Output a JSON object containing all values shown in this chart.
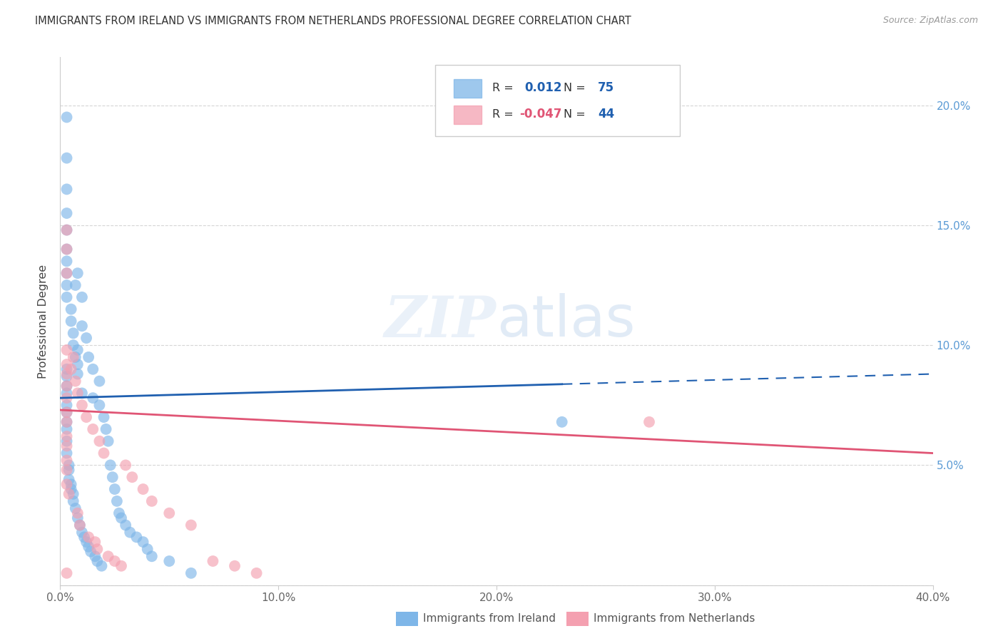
{
  "title": "IMMIGRANTS FROM IRELAND VS IMMIGRANTS FROM NETHERLANDS PROFESSIONAL DEGREE CORRELATION CHART",
  "source": "Source: ZipAtlas.com",
  "ylabel": "Professional Degree",
  "xlim": [
    0.0,
    0.4
  ],
  "ylim": [
    0.0,
    0.22
  ],
  "xticks": [
    0.0,
    0.1,
    0.2,
    0.3,
    0.4
  ],
  "yticks": [
    0.0,
    0.05,
    0.1,
    0.15,
    0.2
  ],
  "xtick_labels": [
    "0.0%",
    "10.0%",
    "20.0%",
    "30.0%",
    "40.0%"
  ],
  "ytick_labels": [
    "",
    "5.0%",
    "10.0%",
    "15.0%",
    "20.0%"
  ],
  "ireland_color": "#7EB6E8",
  "netherlands_color": "#F4A0B0",
  "ireland_R": 0.012,
  "ireland_N": 75,
  "netherlands_R": -0.047,
  "netherlands_N": 44,
  "legend_label_ireland": "Immigrants from Ireland",
  "legend_label_netherlands": "Immigrants from Netherlands",
  "ireland_x": [
    0.003,
    0.003,
    0.003,
    0.003,
    0.003,
    0.003,
    0.003,
    0.003,
    0.003,
    0.003,
    0.003,
    0.003,
    0.003,
    0.003,
    0.003,
    0.003,
    0.003,
    0.003,
    0.003,
    0.003,
    0.004,
    0.004,
    0.004,
    0.005,
    0.005,
    0.005,
    0.005,
    0.006,
    0.006,
    0.006,
    0.006,
    0.007,
    0.007,
    0.007,
    0.008,
    0.008,
    0.008,
    0.008,
    0.008,
    0.009,
    0.01,
    0.01,
    0.01,
    0.01,
    0.011,
    0.012,
    0.012,
    0.013,
    0.013,
    0.014,
    0.015,
    0.015,
    0.016,
    0.017,
    0.018,
    0.018,
    0.019,
    0.02,
    0.021,
    0.022,
    0.023,
    0.024,
    0.025,
    0.026,
    0.027,
    0.028,
    0.03,
    0.032,
    0.035,
    0.038,
    0.04,
    0.042,
    0.05,
    0.06,
    0.23
  ],
  "ireland_y": [
    0.195,
    0.178,
    0.165,
    0.155,
    0.148,
    0.14,
    0.135,
    0.13,
    0.125,
    0.12,
    0.09,
    0.087,
    0.083,
    0.08,
    0.075,
    0.072,
    0.068,
    0.065,
    0.06,
    0.055,
    0.05,
    0.048,
    0.044,
    0.115,
    0.11,
    0.042,
    0.04,
    0.105,
    0.1,
    0.038,
    0.035,
    0.125,
    0.095,
    0.032,
    0.13,
    0.098,
    0.092,
    0.088,
    0.028,
    0.025,
    0.12,
    0.108,
    0.08,
    0.022,
    0.02,
    0.103,
    0.018,
    0.095,
    0.016,
    0.014,
    0.09,
    0.078,
    0.012,
    0.01,
    0.085,
    0.075,
    0.008,
    0.07,
    0.065,
    0.06,
    0.05,
    0.045,
    0.04,
    0.035,
    0.03,
    0.028,
    0.025,
    0.022,
    0.02,
    0.018,
    0.015,
    0.012,
    0.01,
    0.005,
    0.068
  ],
  "netherlands_x": [
    0.003,
    0.003,
    0.003,
    0.003,
    0.003,
    0.003,
    0.003,
    0.003,
    0.003,
    0.003,
    0.003,
    0.003,
    0.003,
    0.003,
    0.003,
    0.004,
    0.005,
    0.006,
    0.007,
    0.008,
    0.008,
    0.009,
    0.01,
    0.012,
    0.013,
    0.015,
    0.016,
    0.017,
    0.018,
    0.02,
    0.022,
    0.025,
    0.028,
    0.03,
    0.033,
    0.038,
    0.042,
    0.05,
    0.06,
    0.07,
    0.08,
    0.09,
    0.27,
    0.003
  ],
  "netherlands_y": [
    0.148,
    0.14,
    0.13,
    0.098,
    0.092,
    0.088,
    0.083,
    0.078,
    0.072,
    0.068,
    0.062,
    0.058,
    0.052,
    0.048,
    0.042,
    0.038,
    0.09,
    0.095,
    0.085,
    0.08,
    0.03,
    0.025,
    0.075,
    0.07,
    0.02,
    0.065,
    0.018,
    0.015,
    0.06,
    0.055,
    0.012,
    0.01,
    0.008,
    0.05,
    0.045,
    0.04,
    0.035,
    0.03,
    0.025,
    0.01,
    0.008,
    0.005,
    0.068,
    0.005
  ],
  "ireland_line_color": "#2060B0",
  "netherlands_line_color": "#E05575",
  "background_color": "#ffffff",
  "grid_color": "#cccccc",
  "right_ytick_color": "#5B9BD5"
}
